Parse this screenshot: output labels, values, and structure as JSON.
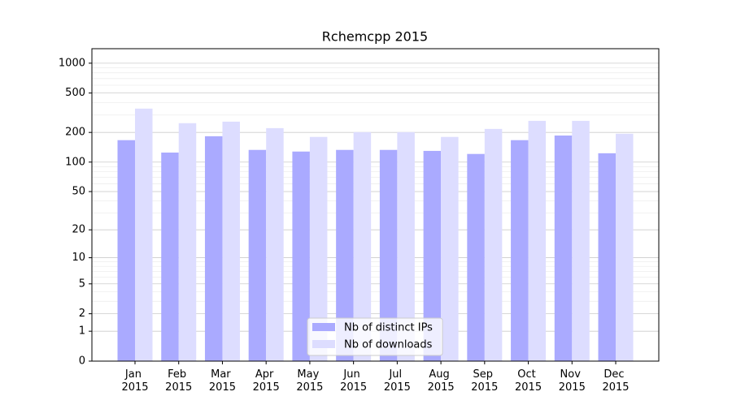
{
  "chart_data": {
    "type": "bar",
    "title": "Rchemcpp 2015",
    "scale": "log1p",
    "categories": [
      "Jan 2015",
      "Feb 2015",
      "Mar 2015",
      "Apr 2015",
      "May 2015",
      "Jun 2015",
      "Jul 2015",
      "Aug 2015",
      "Sep 2015",
      "Oct 2015",
      "Nov 2015",
      "Dec 2015"
    ],
    "series": [
      {
        "name": "Nb of distinct IPs",
        "color": "#aaaaff",
        "values": [
          167,
          125,
          183,
          133,
          128,
          133,
          133,
          130,
          121,
          167,
          186,
          123
        ]
      },
      {
        "name": "Nb of downloads",
        "color": "#ddddff",
        "values": [
          348,
          248,
          257,
          221,
          180,
          201,
          201,
          180,
          217,
          262,
          262,
          194
        ]
      }
    ],
    "ylim": [
      0,
      1400
    ],
    "yticks": [
      0,
      1,
      2,
      5,
      10,
      20,
      50,
      100,
      200,
      500,
      1000
    ],
    "minor_yticks": [
      3,
      4,
      6,
      7,
      8,
      9,
      30,
      40,
      60,
      70,
      80,
      90,
      300,
      400,
      600,
      700,
      800,
      900
    ],
    "grid": true,
    "legend": "lower center"
  }
}
